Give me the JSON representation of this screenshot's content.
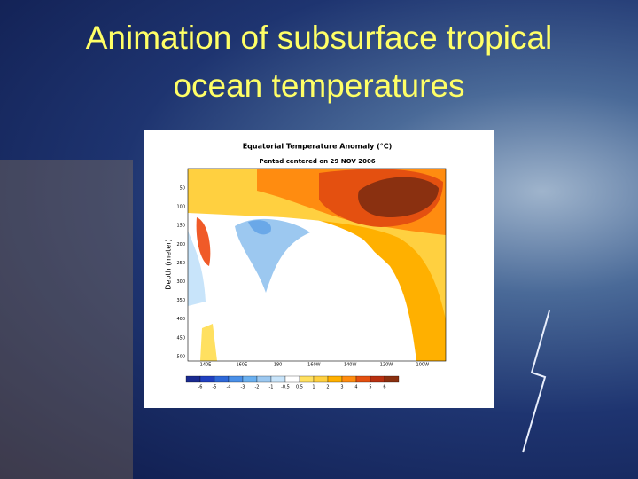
{
  "slide": {
    "title_lines": [
      "Animation of subsurface tropical",
      "ocean temperatures"
    ]
  },
  "figure": {
    "title": "Equatorial Temperature Anomaly (°C)",
    "subtitle": "Pentad centered on 29 NOV 2006",
    "y_label": "Depth (meter)",
    "y_ticks": [
      50,
      100,
      150,
      200,
      250,
      300,
      350,
      400,
      450,
      500
    ],
    "x_ticks": [
      "140E",
      "160E",
      "180",
      "160W",
      "140W",
      "120W",
      "100W"
    ],
    "colorbar_ticks": [
      -6,
      -5,
      -4,
      -3,
      -2,
      -1,
      -0.5,
      0.5,
      1,
      2,
      3,
      4,
      5,
      6
    ]
  }
}
